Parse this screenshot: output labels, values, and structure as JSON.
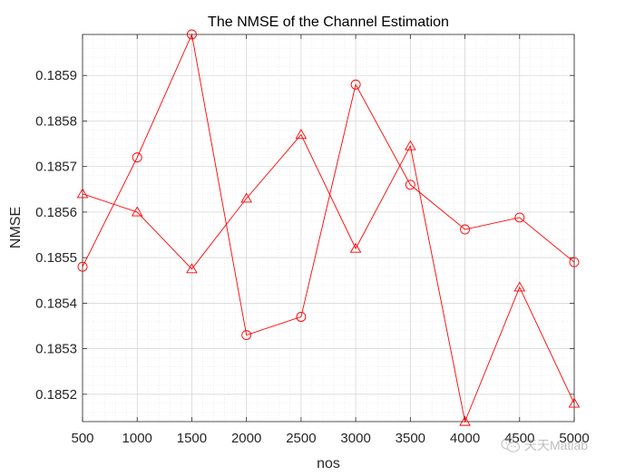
{
  "chart_data": {
    "type": "line",
    "title": "The NMSE of the Channel Estimation",
    "xlabel": "nos",
    "ylabel": "NMSE",
    "x": [
      500,
      1000,
      1500,
      2000,
      2500,
      3000,
      3500,
      4000,
      4500,
      5000
    ],
    "xlim": [
      500,
      5000
    ],
    "ylim": [
      0.18514,
      0.18599
    ],
    "xticks": [
      "500",
      "1000",
      "1500",
      "2000",
      "2500",
      "3000",
      "3500",
      "4000",
      "4500",
      "5000"
    ],
    "yticks": [
      "0.1852",
      "0.1853",
      "0.1854",
      "0.1855",
      "0.1856",
      "0.1857",
      "0.1858",
      "0.1859"
    ],
    "ytick_values": [
      0.1852,
      0.1853,
      0.1854,
      0.1855,
      0.1856,
      0.1857,
      0.1858,
      0.1859
    ],
    "grid": true,
    "minor_grid": true,
    "series": [
      {
        "name": "circle-series",
        "marker": "circle",
        "color": "#ff0000",
        "values": [
          0.18548,
          0.18572,
          0.18599,
          0.18533,
          0.18537,
          0.18588,
          0.18566,
          0.185562,
          0.185588,
          0.18549
        ]
      },
      {
        "name": "triangle-series",
        "marker": "triangle",
        "color": "#ff0000",
        "values": [
          0.18564,
          0.1856,
          0.185475,
          0.18563,
          0.18577,
          0.18552,
          0.185745,
          0.18514,
          0.185435,
          0.18518
        ]
      }
    ]
  },
  "watermark": {
    "icon": "wechat-icon",
    "text": "天天Matlab"
  }
}
